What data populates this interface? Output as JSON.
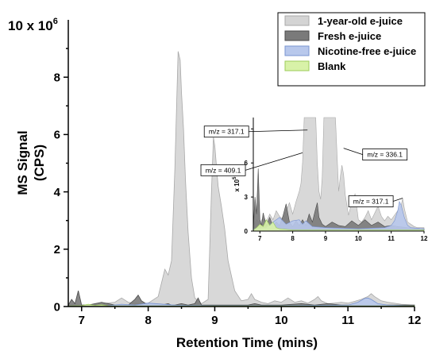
{
  "chart_data": [
    {
      "type": "area",
      "xlabel": "Retention Time (mins)",
      "ylabel_line1": "MS Signal",
      "ylabel_line2": "(CPS)",
      "y_multiplier": "10 x 10",
      "y_multiplier_exp": "6",
      "xlim": [
        6.8,
        12.0
      ],
      "ylim": [
        0,
        10
      ],
      "x_ticks": [
        7,
        8,
        9,
        10,
        11,
        12
      ],
      "y_ticks": [
        0,
        2,
        4,
        6,
        8
      ],
      "legend": {
        "placement": "top-right",
        "entries": [
          "1-year-old e-juice",
          "Fresh e-juice",
          "Nicotine-free e-juice",
          "Blank"
        ]
      },
      "series": [
        {
          "name": "1-year-old e-juice",
          "color": "#d4d4d4",
          "edge": "#a8a8a8",
          "x": [
            6.8,
            6.9,
            7.0,
            7.2,
            7.5,
            7.6,
            7.7,
            7.85,
            8.0,
            8.15,
            8.25,
            8.3,
            8.35,
            8.4,
            8.45,
            8.48,
            8.5,
            8.53,
            8.56,
            8.6,
            8.65,
            8.7,
            8.8,
            8.9,
            8.95,
            8.98,
            9.0,
            9.05,
            9.1,
            9.15,
            9.2,
            9.3,
            9.4,
            9.5,
            9.55,
            9.6,
            9.7,
            9.8,
            9.9,
            10.0,
            10.1,
            10.2,
            10.3,
            10.4,
            10.5,
            10.55,
            10.6,
            10.7,
            10.8,
            10.9,
            11.0,
            11.1,
            11.2,
            11.3,
            11.35,
            11.4,
            11.5,
            11.6,
            11.8,
            12.0
          ],
          "y": [
            0.05,
            0.1,
            0.05,
            0.08,
            0.15,
            0.3,
            0.15,
            0.1,
            0.12,
            0.35,
            1.3,
            1.1,
            1.6,
            4.8,
            8.9,
            8.6,
            7.5,
            6.2,
            4.4,
            2.6,
            1.0,
            0.3,
            0.1,
            0.25,
            4.0,
            5.9,
            5.6,
            4.2,
            3.5,
            2.7,
            1.6,
            0.55,
            0.2,
            0.25,
            0.45,
            0.25,
            0.15,
            0.1,
            0.2,
            0.15,
            0.3,
            0.15,
            0.2,
            0.12,
            0.25,
            0.35,
            0.2,
            0.1,
            0.12,
            0.15,
            0.12,
            0.18,
            0.25,
            0.35,
            0.45,
            0.35,
            0.2,
            0.15,
            0.08,
            0.05
          ]
        },
        {
          "name": "Fresh e-juice",
          "color": "#7a7a7a",
          "edge": "#4a4a4a",
          "x": [
            6.8,
            6.85,
            6.9,
            6.95,
            7.0,
            7.1,
            7.3,
            7.5,
            7.7,
            7.8,
            7.85,
            7.9,
            8.0,
            8.2,
            8.3,
            8.35,
            8.4,
            8.5,
            8.6,
            8.7,
            8.75,
            8.8,
            8.9,
            9.0,
            9.5,
            9.6,
            9.7,
            10.0,
            10.3,
            10.5,
            10.7,
            10.9,
            11.0,
            11.5,
            12.0
          ],
          "y": [
            0.05,
            0.25,
            0.1,
            0.55,
            0.05,
            0.05,
            0.15,
            0.05,
            0.05,
            0.25,
            0.4,
            0.2,
            0.05,
            0.05,
            0.1,
            0.05,
            0.05,
            0.1,
            0.05,
            0.1,
            0.3,
            0.05,
            0.05,
            0.05,
            0.05,
            0.1,
            0.05,
            0.05,
            0.1,
            0.05,
            0.1,
            0.05,
            0.05,
            0.05,
            0.05
          ]
        },
        {
          "name": "Nicotine-free e-juice",
          "color": "#b8c8ec",
          "edge": "#7a94d0",
          "x": [
            6.8,
            7.4,
            7.6,
            7.8,
            8.0,
            8.4,
            8.6,
            9.0,
            10.0,
            11.0,
            11.15,
            11.25,
            11.3,
            11.35,
            11.45,
            11.6,
            12.0
          ],
          "y": [
            0.02,
            0.03,
            0.08,
            0.05,
            0.12,
            0.05,
            0.04,
            0.03,
            0.03,
            0.05,
            0.15,
            0.28,
            0.3,
            0.25,
            0.1,
            0.05,
            0.02
          ]
        },
        {
          "name": "Blank",
          "color": "#d8f2a8",
          "edge": "#9ccc5a",
          "x": [
            6.8,
            7.0,
            7.1,
            7.2,
            7.3,
            7.4,
            8.0,
            12.0
          ],
          "y": [
            0.02,
            0.03,
            0.08,
            0.04,
            0.06,
            0.02,
            0.02,
            0.02
          ]
        }
      ]
    },
    {
      "type": "area",
      "inset": true,
      "ylabel": "x 10",
      "ylabel_exp": "5",
      "xlim": [
        6.8,
        12.0
      ],
      "ylim": [
        0,
        10
      ],
      "x_ticks": [
        7,
        8,
        9,
        10,
        11,
        12
      ],
      "y_ticks": [
        0,
        3,
        6,
        9
      ],
      "annotations": [
        {
          "label": "m/z = 317.1",
          "x": 8.45,
          "y": 8.9
        },
        {
          "label": "m/z = 409.1",
          "x": 8.3,
          "y": 6.9
        },
        {
          "label": "m/z = 336.1",
          "x": 9.55,
          "y": 7.3
        },
        {
          "label": "m/z = 317.1",
          "x": 11.35,
          "y": 2.9
        }
      ],
      "series": [
        {
          "name": "1-year-old e-juice",
          "x": [
            6.8,
            6.9,
            7.0,
            7.1,
            7.2,
            7.3,
            7.4,
            7.5,
            7.6,
            7.7,
            7.8,
            7.9,
            8.0,
            8.1,
            8.2,
            8.25,
            8.3,
            8.35,
            8.4,
            8.45,
            8.5,
            8.55,
            8.6,
            8.65,
            8.7,
            8.75,
            8.8,
            8.85,
            8.9,
            8.95,
            9.0,
            9.1,
            9.2,
            9.3,
            9.4,
            9.45,
            9.5,
            9.55,
            9.6,
            9.7,
            9.8,
            9.9,
            10.0,
            10.1,
            10.2,
            10.3,
            10.4,
            10.5,
            10.6,
            10.7,
            10.8,
            10.9,
            11.0,
            11.1,
            11.2,
            11.3,
            11.35,
            11.4,
            11.5,
            11.6,
            11.7,
            11.8,
            12.0
          ],
          "y": [
            0.5,
            1.0,
            0.7,
            1.2,
            0.8,
            1.5,
            1.0,
            1.8,
            1.3,
            1.0,
            1.8,
            2.5,
            1.5,
            2.6,
            3.5,
            4.2,
            6.0,
            10.0,
            10.0,
            10.0,
            10.0,
            10.0,
            10.0,
            10.0,
            10.0,
            6.0,
            3.5,
            2.8,
            4.8,
            10.0,
            10.0,
            10.0,
            10.0,
            10.0,
            3.5,
            4.8,
            5.8,
            5.0,
            3.2,
            1.4,
            2.5,
            3.3,
            1.0,
            0.8,
            1.2,
            1.8,
            1.0,
            1.6,
            2.2,
            1.3,
            0.9,
            1.3,
            1.0,
            1.4,
            1.8,
            2.2,
            2.9,
            2.0,
            0.8,
            0.6,
            0.4,
            0.3,
            0.3
          ]
        },
        {
          "name": "Fresh e-juice",
          "x": [
            6.8,
            6.85,
            6.9,
            6.95,
            7.0,
            7.05,
            7.1,
            7.2,
            7.3,
            7.4,
            7.5,
            7.6,
            7.7,
            7.8,
            7.9,
            8.0,
            8.1,
            8.2,
            8.3,
            8.4,
            8.5,
            8.6,
            8.7,
            8.75,
            8.8,
            8.9,
            9.0,
            9.2,
            9.4,
            9.6,
            9.8,
            10.0,
            10.2,
            10.4,
            10.6,
            10.8,
            11.0,
            11.2,
            11.5,
            12.0
          ],
          "y": [
            0.2,
            3.0,
            1.5,
            5.5,
            1.0,
            0.5,
            1.6,
            0.5,
            1.2,
            0.4,
            0.8,
            0.5,
            1.3,
            2.4,
            0.8,
            0.4,
            0.9,
            0.5,
            1.0,
            0.5,
            1.5,
            0.8,
            2.0,
            2.5,
            1.2,
            0.6,
            0.4,
            0.8,
            0.5,
            0.4,
            0.9,
            0.5,
            1.0,
            0.5,
            0.8,
            0.4,
            0.5,
            0.4,
            0.3,
            0.2
          ]
        },
        {
          "name": "Nicotine-free e-juice",
          "x": [
            6.8,
            7.2,
            7.4,
            7.6,
            7.8,
            8.0,
            8.2,
            8.3,
            8.4,
            8.6,
            9.0,
            10.0,
            10.8,
            11.0,
            11.1,
            11.2,
            11.25,
            11.3,
            11.4,
            11.5,
            11.6,
            12.0
          ],
          "y": [
            0.2,
            0.3,
            0.8,
            1.2,
            0.6,
            0.9,
            1.0,
            0.6,
            0.9,
            0.4,
            0.3,
            0.2,
            0.3,
            0.5,
            0.9,
            1.8,
            2.6,
            2.3,
            1.2,
            0.5,
            0.3,
            0.2
          ]
        },
        {
          "name": "Blank",
          "x": [
            6.8,
            6.9,
            7.0,
            7.1,
            7.2,
            7.3,
            7.4,
            7.5,
            7.6,
            8.0,
            12.0
          ],
          "y": [
            0.1,
            0.3,
            0.6,
            0.4,
            1.0,
            0.5,
            0.8,
            0.3,
            0.2,
            0.1,
            0.1
          ]
        }
      ]
    }
  ]
}
